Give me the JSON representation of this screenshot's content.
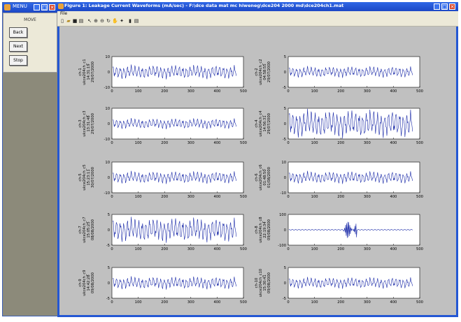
{
  "menu_window": {
    "title": "MENU",
    "label": "MOVE",
    "buttons": [
      "Back",
      "Next",
      "Stop"
    ]
  },
  "figure_window": {
    "title": "Figure 1: Leakage Current Waveforms (mA/sec) - F:\\dce data mat mc hiweneg\\dce204 2000 md\\dce204ch1.mat",
    "menu": "File",
    "toolbar_icons": [
      "new-icon",
      "open-icon",
      "save-icon",
      "print-icon",
      "arrow-icon",
      "zoom-in-icon",
      "zoom-out-icon",
      "rotate-icon",
      "pan-icon",
      "datatip-icon",
      "colorbar-icon"
    ]
  },
  "chart_data": [
    {
      "type": "line",
      "ylabel_lines": [
        "ch-1",
        "ukce204ch_c1",
        "14:31:19",
        "29/07/2000"
      ],
      "x_ticks": [
        "0",
        "100",
        "200",
        "300",
        "400",
        "500"
      ],
      "y_ticks": [
        "-10",
        "0",
        "10"
      ],
      "ylim": [
        -10,
        10
      ],
      "xlim": [
        0,
        500
      ],
      "amplitude": 4,
      "period": 14
    },
    {
      "type": "line",
      "ylabel_lines": [
        "ch-2",
        "ukce204ch_c2",
        "04:58:55",
        "29/07/2000"
      ],
      "x_ticks": [
        "0",
        "100",
        "200",
        "300",
        "400",
        "500"
      ],
      "y_ticks": [
        "-5",
        "0",
        "5"
      ],
      "ylim": [
        -5,
        5
      ],
      "xlim": [
        0,
        500
      ],
      "amplitude": 1.6,
      "period": 14
    },
    {
      "type": "line",
      "ylabel_lines": [
        "ch-3",
        "ukce204ch_c3",
        "13:31:48",
        "29/07/2000"
      ],
      "x_ticks": [
        "0",
        "100",
        "200",
        "300",
        "400",
        "500"
      ],
      "y_ticks": [
        "-10",
        "0",
        "10"
      ],
      "ylim": [
        -10,
        10
      ],
      "xlim": [
        0,
        500
      ],
      "amplitude": 3,
      "period": 14
    },
    {
      "type": "line",
      "ylabel_lines": [
        "ch-4",
        "ukce204ch_c4",
        "14:56:31",
        "29/07/2000"
      ],
      "x_ticks": [
        "0",
        "100",
        "200",
        "300",
        "400",
        "500"
      ],
      "y_ticks": [
        "-5",
        "0",
        "5"
      ],
      "ylim": [
        -5,
        5
      ],
      "xlim": [
        0,
        500
      ],
      "amplitude": 4,
      "period": 14
    },
    {
      "type": "line",
      "ylabel_lines": [
        "ch-5",
        "ukce204ch_c5",
        "15:23:11",
        "30/07/2000"
      ],
      "x_ticks": [
        "0",
        "100",
        "200",
        "300",
        "400",
        "500"
      ],
      "y_ticks": [
        "-10",
        "0",
        "10"
      ],
      "ylim": [
        -10,
        10
      ],
      "xlim": [
        0,
        500
      ],
      "amplitude": 3.5,
      "period": 14
    },
    {
      "type": "line",
      "ylabel_lines": [
        "ch-6",
        "ukce204ch_c6",
        "01:48:50",
        "01/08/2000"
      ],
      "x_ticks": [
        "0",
        "100",
        "200",
        "300",
        "400",
        "500"
      ],
      "y_ticks": [
        "-10",
        "0",
        "10"
      ],
      "ylim": [
        -10,
        10
      ],
      "xlim": [
        0,
        500
      ],
      "amplitude": 3.5,
      "period": 14
    },
    {
      "type": "line",
      "ylabel_lines": [
        "ch-7",
        "ukce204ch_c7",
        "15:05:25",
        "08/08/2000"
      ],
      "x_ticks": [
        "0",
        "100",
        "200",
        "300",
        "400",
        "500"
      ],
      "y_ticks": [
        "-5",
        "0",
        "5"
      ],
      "ylim": [
        -5,
        5
      ],
      "xlim": [
        0,
        500
      ],
      "amplitude": 3.5,
      "period": 14
    },
    {
      "type": "line",
      "ylabel_lines": [
        "ch-8",
        "ukce204ch_c8",
        "22:19:34",
        "09/08/2000"
      ],
      "x_ticks": [
        "0",
        "100",
        "200",
        "300",
        "400",
        "500"
      ],
      "y_ticks": [
        "-100",
        "0",
        "100"
      ],
      "ylim": [
        -100,
        100
      ],
      "xlim": [
        0,
        500
      ],
      "amplitude": 3,
      "period": 14,
      "burst": [
        200,
        300
      ]
    },
    {
      "type": "line",
      "ylabel_lines": [
        "ch-9",
        "ukce204ch_c9",
        "14:42:28",
        "09/08/2000"
      ],
      "x_ticks": [
        "0",
        "100",
        "200",
        "300",
        "400",
        "500"
      ],
      "y_ticks": [
        "-5",
        "0",
        "5"
      ],
      "ylim": [
        -5,
        5
      ],
      "xlim": [
        0,
        500
      ],
      "amplitude": 1.8,
      "period": 14
    },
    {
      "type": "line",
      "ylabel_lines": [
        "ch-10",
        "ukce204ch_c10",
        "15:30:41",
        "09/08/2000"
      ],
      "x_ticks": [
        "0",
        "100",
        "200",
        "300",
        "400",
        "500"
      ],
      "y_ticks": [
        "-5",
        "0",
        "5"
      ],
      "ylim": [
        -5,
        5
      ],
      "xlim": [
        0,
        500
      ],
      "amplitude": 1.6,
      "period": 14
    }
  ]
}
